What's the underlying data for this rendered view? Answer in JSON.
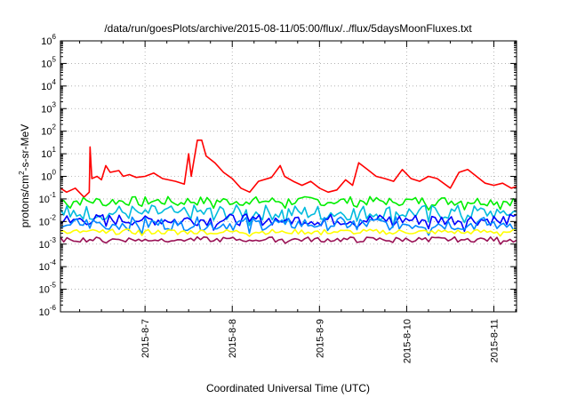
{
  "chart_data": {
    "type": "line",
    "title": "/data/run/goesPlots/archive/2015-08-11/05:00/flux/../flux/5daysMoonFluxes.txt",
    "xlabel": "Coordinated Universal Time (UTC)",
    "ylabel": {
      "base": "protons/cm",
      "sup": "2",
      "rest": "-s-sr-MeV"
    },
    "y_scale": "log",
    "ylim_exponents": [
      -6,
      6
    ],
    "y_ticks": [
      {
        "base": "10",
        "exp": "-6"
      },
      {
        "base": "10",
        "exp": "-5"
      },
      {
        "base": "10",
        "exp": "-4"
      },
      {
        "base": "10",
        "exp": "-3"
      },
      {
        "base": "10",
        "exp": "-2"
      },
      {
        "base": "10",
        "exp": "-1"
      },
      {
        "base": "10",
        "exp": "0"
      },
      {
        "base": "10",
        "exp": "1"
      },
      {
        "base": "10",
        "exp": "2"
      },
      {
        "base": "10",
        "exp": "3"
      },
      {
        "base": "10",
        "exp": "4"
      },
      {
        "base": "10",
        "exp": "5"
      },
      {
        "base": "10",
        "exp": "6"
      }
    ],
    "xlim_days": [
      6.03,
      11.26
    ],
    "x_ticks": [
      {
        "day": 7,
        "label": "2015-8-7"
      },
      {
        "day": 8,
        "label": "2015-8-8"
      },
      {
        "day": 9,
        "label": "2015-8-9"
      },
      {
        "day": 10,
        "label": "2015-8-10"
      },
      {
        "day": 11,
        "label": "2015-8-11"
      }
    ],
    "grid": true,
    "legend": "none",
    "series": [
      {
        "color": "#ff0000",
        "points": [
          [
            6.03,
            0.3
          ],
          [
            6.1,
            0.2
          ],
          [
            6.2,
            0.3
          ],
          [
            6.3,
            0.12
          ],
          [
            6.36,
            0.2
          ],
          [
            6.37,
            20
          ],
          [
            6.39,
            0.8
          ],
          [
            6.45,
            1
          ],
          [
            6.5,
            0.7
          ],
          [
            6.55,
            3
          ],
          [
            6.6,
            1.5
          ],
          [
            6.7,
            1.8
          ],
          [
            6.75,
            1
          ],
          [
            6.82,
            1.2
          ],
          [
            6.9,
            0.9
          ],
          [
            7.0,
            1
          ],
          [
            7.1,
            1.4
          ],
          [
            7.2,
            0.8
          ],
          [
            7.35,
            0.6
          ],
          [
            7.45,
            0.45
          ],
          [
            7.5,
            10
          ],
          [
            7.53,
            1
          ],
          [
            7.6,
            40
          ],
          [
            7.65,
            40
          ],
          [
            7.7,
            8
          ],
          [
            7.8,
            4
          ],
          [
            7.9,
            1.5
          ],
          [
            8.0,
            0.8
          ],
          [
            8.1,
            0.3
          ],
          [
            8.2,
            0.2
          ],
          [
            8.3,
            0.6
          ],
          [
            8.45,
            0.9
          ],
          [
            8.55,
            3
          ],
          [
            8.6,
            1
          ],
          [
            8.7,
            0.6
          ],
          [
            8.8,
            0.4
          ],
          [
            8.9,
            0.6
          ],
          [
            9.0,
            0.3
          ],
          [
            9.1,
            0.2
          ],
          [
            9.2,
            0.25
          ],
          [
            9.3,
            0.7
          ],
          [
            9.38,
            0.4
          ],
          [
            9.45,
            4
          ],
          [
            9.55,
            2
          ],
          [
            9.65,
            1
          ],
          [
            9.75,
            0.8
          ],
          [
            9.85,
            0.6
          ],
          [
            9.95,
            2
          ],
          [
            10.05,
            0.8
          ],
          [
            10.15,
            0.6
          ],
          [
            10.25,
            1
          ],
          [
            10.35,
            0.8
          ],
          [
            10.5,
            0.3
          ],
          [
            10.6,
            1.5
          ],
          [
            10.7,
            2
          ],
          [
            10.8,
            1
          ],
          [
            10.9,
            0.5
          ],
          [
            11.0,
            0.4
          ],
          [
            11.1,
            0.5
          ],
          [
            11.2,
            0.3
          ],
          [
            11.26,
            0.35
          ]
        ]
      },
      {
        "color": "#00ee00",
        "level": 0.08,
        "spread": 1.6
      },
      {
        "color": "#00bbdd",
        "level": 0.025,
        "spread": 2.2
      },
      {
        "color": "#0000ff",
        "level": 0.012,
        "spread": 1.8
      },
      {
        "color": "#0088ff",
        "level": 0.008,
        "spread": 2.0
      },
      {
        "color": "#ffff00",
        "level": 0.0035,
        "spread": 1.3
      },
      {
        "color": "#991155",
        "level": 0.0016,
        "spread": 1.3
      }
    ]
  }
}
